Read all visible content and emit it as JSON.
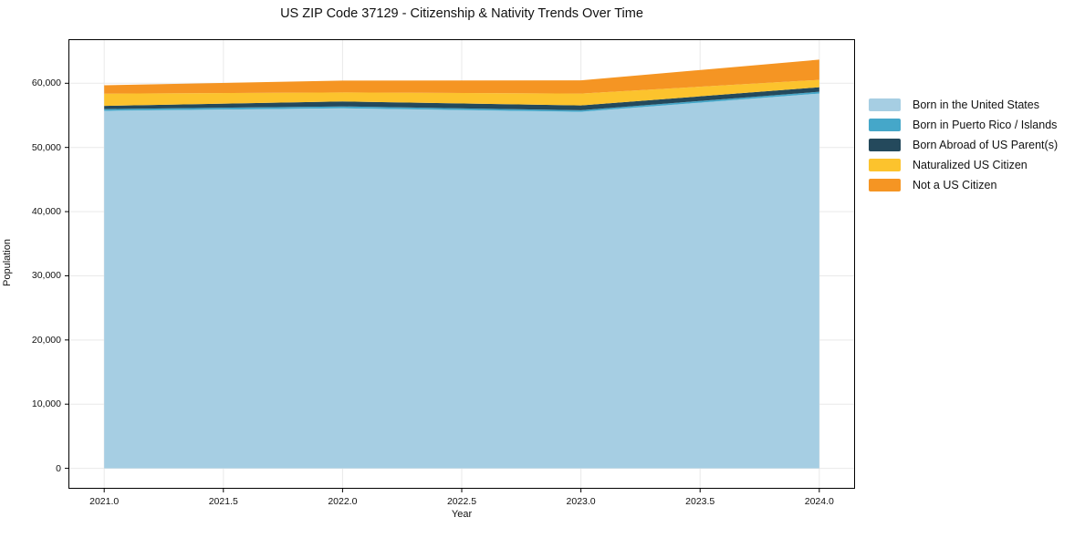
{
  "figure": {
    "title": "US ZIP Code 37129 - Citizenship & Nativity Trends Over Time",
    "xlabel": "Year",
    "ylabel": "Population"
  },
  "chart_data": {
    "type": "area",
    "stacked": true,
    "title": "US ZIP Code 37129 - Citizenship & Nativity Trends Over Time",
    "xlabel": "Year",
    "ylabel": "Population",
    "x": [
      2021,
      2022,
      2023,
      2024
    ],
    "series": [
      {
        "name": "Born in the United States",
        "color": "#a6cee3",
        "values": [
          55700,
          56100,
          55550,
          58400
        ]
      },
      {
        "name": "Born in Puerto Rico / Islands",
        "color": "#45a7c9",
        "values": [
          280,
          290,
          250,
          280
        ]
      },
      {
        "name": "Born Abroad of US Parent(s)",
        "color": "#24495c",
        "values": [
          500,
          780,
          750,
          700
        ]
      },
      {
        "name": "Naturalized US Citizen",
        "color": "#fcc32d",
        "values": [
          1900,
          1400,
          1850,
          1150
        ]
      },
      {
        "name": "Not a US Citizen",
        "color": "#f59523",
        "values": [
          1300,
          1850,
          2050,
          3150
        ]
      }
    ],
    "totals": [
      59680,
      60420,
      60450,
      63680
    ],
    "xlim": [
      2020.85,
      2024.15
    ],
    "ylim": [
      -3184,
      66864
    ],
    "x_ticks": [
      2021.0,
      2021.5,
      2022.0,
      2022.5,
      2023.0,
      2023.5,
      2024.0
    ],
    "x_tick_labels": [
      "2021.0",
      "2021.5",
      "2022.0",
      "2022.5",
      "2023.0",
      "2023.5",
      "2024.0"
    ],
    "y_ticks": [
      0,
      10000,
      20000,
      30000,
      40000,
      50000,
      60000
    ],
    "y_tick_labels": [
      "0",
      "10,000",
      "20,000",
      "30,000",
      "40,000",
      "50,000",
      "60,000"
    ],
    "grid": true,
    "legend_position": "right-outside"
  },
  "colors": {
    "grid": "#e9e9e9",
    "spine": "#000000",
    "text": "#111111",
    "background": "#ffffff"
  }
}
